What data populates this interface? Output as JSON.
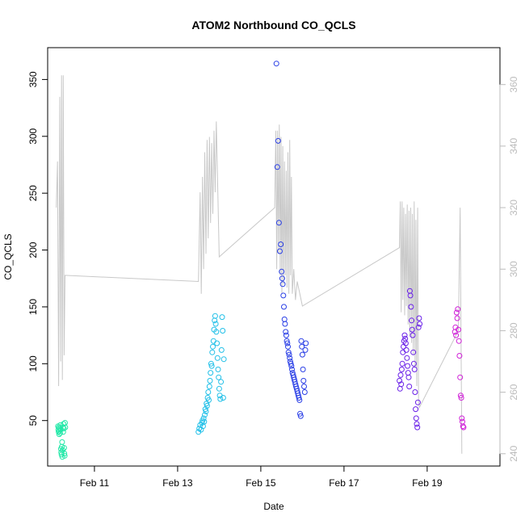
{
  "chart_data": {
    "type": "scatter",
    "title": "ATOM2 Northbound CO_QCLS",
    "xlabel": "Date",
    "ylabel": "CO_QCLS",
    "xlim": [
      "2016-02-09T21:00",
      "2016-02-20T18:00"
    ],
    "ylim": [
      10,
      378
    ],
    "y2lim": [
      236,
      372
    ],
    "x_ticks": [
      {
        "date": "2016-02-11",
        "label": "Feb 11"
      },
      {
        "date": "2016-02-13",
        "label": "Feb 13"
      },
      {
        "date": "2016-02-15",
        "label": "Feb 15"
      },
      {
        "date": "2016-02-17",
        "label": "Feb 17"
      },
      {
        "date": "2016-02-19",
        "label": "Feb 19"
      }
    ],
    "y_ticks": [
      50,
      100,
      150,
      200,
      250,
      300,
      350
    ],
    "y2_ticks": [
      240,
      260,
      280,
      300,
      320,
      340,
      360
    ],
    "grid": false,
    "legend": "none",
    "colors": {
      "line": "#c8c8c8",
      "axis": "#000000",
      "right_axis": "#bbbbbb"
    },
    "series": [
      {
        "color": "#22e8a8",
        "points": [
          [
            "2016-02-10T03:00",
            45
          ],
          [
            "2016-02-10T03:10",
            42
          ],
          [
            "2016-02-10T03:20",
            40
          ],
          [
            "2016-02-10T03:30",
            44
          ],
          [
            "2016-02-10T03:40",
            38
          ],
          [
            "2016-02-10T03:50",
            41
          ],
          [
            "2016-02-10T04:00",
            43
          ],
          [
            "2016-02-10T04:10",
            39
          ],
          [
            "2016-02-10T04:20",
            46
          ],
          [
            "2016-02-10T04:30",
            42
          ],
          [
            "2016-02-10T04:40",
            25
          ],
          [
            "2016-02-10T04:50",
            22
          ],
          [
            "2016-02-10T05:00",
            20
          ],
          [
            "2016-02-10T05:10",
            27
          ],
          [
            "2016-02-10T05:20",
            31
          ],
          [
            "2016-02-10T05:30",
            18
          ],
          [
            "2016-02-10T05:40",
            24
          ],
          [
            "2016-02-10T05:50",
            44
          ],
          [
            "2016-02-10T06:00",
            40
          ],
          [
            "2016-02-10T06:10",
            47
          ],
          [
            "2016-02-10T06:20",
            43
          ],
          [
            "2016-02-10T06:30",
            26
          ],
          [
            "2016-02-10T06:40",
            21
          ],
          [
            "2016-02-10T06:50",
            19
          ],
          [
            "2016-02-10T07:00",
            48
          ],
          [
            "2016-02-10T07:10",
            44
          ]
        ]
      },
      {
        "color": "#22c0e8",
        "points": [
          [
            "2016-02-13T12:00",
            40
          ],
          [
            "2016-02-13T12:30",
            43
          ],
          [
            "2016-02-13T13:00",
            46
          ],
          [
            "2016-02-13T13:30",
            42
          ],
          [
            "2016-02-13T14:00",
            48
          ],
          [
            "2016-02-13T14:20",
            50
          ],
          [
            "2016-02-13T14:40",
            45
          ],
          [
            "2016-02-13T15:00",
            52
          ],
          [
            "2016-02-13T15:20",
            49
          ],
          [
            "2016-02-13T15:40",
            55
          ],
          [
            "2016-02-13T16:00",
            60
          ],
          [
            "2016-02-13T16:20",
            58
          ],
          [
            "2016-02-13T16:40",
            65
          ],
          [
            "2016-02-13T17:00",
            63
          ],
          [
            "2016-02-13T17:20",
            70
          ],
          [
            "2016-02-13T17:40",
            75
          ],
          [
            "2016-02-13T18:00",
            68
          ],
          [
            "2016-02-13T18:20",
            80
          ],
          [
            "2016-02-13T18:40",
            85
          ],
          [
            "2016-02-13T19:00",
            92
          ],
          [
            "2016-02-13T19:20",
            100
          ],
          [
            "2016-02-13T19:40",
            98
          ],
          [
            "2016-02-13T20:00",
            110
          ],
          [
            "2016-02-13T20:20",
            115
          ],
          [
            "2016-02-13T20:40",
            120
          ],
          [
            "2016-02-13T21:00",
            130
          ],
          [
            "2016-02-13T21:20",
            138
          ],
          [
            "2016-02-13T21:40",
            142
          ],
          [
            "2016-02-13T22:00",
            135
          ],
          [
            "2016-02-13T22:20",
            128
          ],
          [
            "2016-02-13T22:40",
            118
          ],
          [
            "2016-02-13T23:00",
            105
          ],
          [
            "2016-02-13T23:20",
            95
          ],
          [
            "2016-02-13T23:40",
            88
          ],
          [
            "2016-02-14T00:00",
            78
          ],
          [
            "2016-02-14T00:20",
            72
          ],
          [
            "2016-02-14T00:40",
            69
          ],
          [
            "2016-02-14T01:00",
            84
          ],
          [
            "2016-02-14T01:20",
            112
          ],
          [
            "2016-02-14T01:40",
            141
          ],
          [
            "2016-02-14T02:00",
            129
          ],
          [
            "2016-02-14T02:20",
            70
          ],
          [
            "2016-02-14T02:40",
            104
          ]
        ]
      },
      {
        "color": "#2a3fe6",
        "points": [
          [
            "2016-02-15T09:00",
            364
          ],
          [
            "2016-02-15T09:30",
            273
          ],
          [
            "2016-02-15T10:00",
            296
          ],
          [
            "2016-02-15T10:30",
            224
          ],
          [
            "2016-02-15T11:00",
            199
          ],
          [
            "2016-02-15T11:30",
            205
          ],
          [
            "2016-02-15T12:00",
            181
          ],
          [
            "2016-02-15T12:20",
            175
          ],
          [
            "2016-02-15T12:40",
            170
          ],
          [
            "2016-02-15T13:00",
            160
          ],
          [
            "2016-02-15T13:20",
            150
          ],
          [
            "2016-02-15T13:40",
            139
          ],
          [
            "2016-02-15T14:00",
            135
          ],
          [
            "2016-02-15T14:20",
            128
          ],
          [
            "2016-02-15T14:40",
            125
          ],
          [
            "2016-02-15T15:00",
            120
          ],
          [
            "2016-02-15T15:20",
            118
          ],
          [
            "2016-02-15T15:40",
            115
          ],
          [
            "2016-02-15T16:00",
            110
          ],
          [
            "2016-02-15T16:20",
            108
          ],
          [
            "2016-02-15T16:40",
            105
          ],
          [
            "2016-02-15T17:00",
            102
          ],
          [
            "2016-02-15T17:20",
            100
          ],
          [
            "2016-02-15T17:40",
            98
          ],
          [
            "2016-02-15T18:00",
            95
          ],
          [
            "2016-02-15T18:20",
            92
          ],
          [
            "2016-02-15T18:40",
            90
          ],
          [
            "2016-02-15T19:00",
            88
          ],
          [
            "2016-02-15T19:20",
            86
          ],
          [
            "2016-02-15T19:40",
            84
          ],
          [
            "2016-02-15T20:00",
            82
          ],
          [
            "2016-02-15T20:20",
            80
          ],
          [
            "2016-02-15T20:40",
            78
          ],
          [
            "2016-02-15T21:00",
            76
          ],
          [
            "2016-02-15T21:20",
            74
          ],
          [
            "2016-02-15T21:40",
            72
          ],
          [
            "2016-02-15T22:00",
            70
          ],
          [
            "2016-02-15T22:20",
            68
          ],
          [
            "2016-02-15T22:40",
            56
          ],
          [
            "2016-02-15T23:00",
            54
          ],
          [
            "2016-02-15T23:20",
            120
          ],
          [
            "2016-02-15T23:40",
            115
          ],
          [
            "2016-02-16T00:00",
            108
          ],
          [
            "2016-02-16T00:20",
            95
          ],
          [
            "2016-02-16T00:40",
            85
          ],
          [
            "2016-02-16T01:00",
            80
          ],
          [
            "2016-02-16T01:20",
            75
          ],
          [
            "2016-02-16T01:40",
            112
          ],
          [
            "2016-02-16T02:00",
            118
          ]
        ]
      },
      {
        "color": "#6a20e8",
        "points": [
          [
            "2016-02-18T08:00",
            85
          ],
          [
            "2016-02-18T08:20",
            78
          ],
          [
            "2016-02-18T08:40",
            90
          ],
          [
            "2016-02-18T09:00",
            82
          ],
          [
            "2016-02-18T09:20",
            95
          ],
          [
            "2016-02-18T09:40",
            100
          ],
          [
            "2016-02-18T10:00",
            110
          ],
          [
            "2016-02-18T10:20",
            115
          ],
          [
            "2016-02-18T10:40",
            120
          ],
          [
            "2016-02-18T11:00",
            125
          ],
          [
            "2016-02-18T11:20",
            122
          ],
          [
            "2016-02-18T11:40",
            118
          ],
          [
            "2016-02-18T12:00",
            112
          ],
          [
            "2016-02-18T12:20",
            105
          ],
          [
            "2016-02-18T12:40",
            98
          ],
          [
            "2016-02-18T13:00",
            92
          ],
          [
            "2016-02-18T13:20",
            88
          ],
          [
            "2016-02-18T13:40",
            80
          ],
          [
            "2016-02-18T14:00",
            164
          ],
          [
            "2016-02-18T14:20",
            160
          ],
          [
            "2016-02-18T14:40",
            150
          ],
          [
            "2016-02-18T15:00",
            138
          ],
          [
            "2016-02-18T15:20",
            130
          ],
          [
            "2016-02-18T15:40",
            125
          ],
          [
            "2016-02-18T16:00",
            110
          ],
          [
            "2016-02-18T16:20",
            100
          ],
          [
            "2016-02-18T16:40",
            95
          ],
          [
            "2016-02-18T17:00",
            75
          ],
          [
            "2016-02-18T17:20",
            60
          ],
          [
            "2016-02-18T17:40",
            52
          ],
          [
            "2016-02-18T18:00",
            47
          ],
          [
            "2016-02-18T18:20",
            44
          ],
          [
            "2016-02-18T18:40",
            66
          ],
          [
            "2016-02-18T19:00",
            132
          ],
          [
            "2016-02-18T19:20",
            140
          ],
          [
            "2016-02-18T19:40",
            135
          ]
        ]
      },
      {
        "color": "#d020d8",
        "points": [
          [
            "2016-02-19T16:00",
            128
          ],
          [
            "2016-02-19T16:20",
            132
          ],
          [
            "2016-02-19T16:40",
            125
          ],
          [
            "2016-02-19T17:00",
            145
          ],
          [
            "2016-02-19T17:20",
            140
          ],
          [
            "2016-02-19T17:40",
            148
          ],
          [
            "2016-02-19T18:00",
            130
          ],
          [
            "2016-02-19T18:20",
            120
          ],
          [
            "2016-02-19T18:40",
            107
          ],
          [
            "2016-02-19T19:00",
            88
          ],
          [
            "2016-02-19T19:20",
            72
          ],
          [
            "2016-02-19T19:40",
            70
          ],
          [
            "2016-02-19T20:00",
            52
          ],
          [
            "2016-02-19T20:20",
            49
          ],
          [
            "2016-02-19T20:40",
            45
          ],
          [
            "2016-02-19T21:00",
            44
          ]
        ]
      }
    ],
    "line_series": {
      "axis": "right",
      "points": [
        [
          "2016-02-10T02:00",
          320
        ],
        [
          "2016-02-10T02:40",
          335
        ],
        [
          "2016-02-10T03:20",
          262
        ],
        [
          "2016-02-10T04:00",
          356
        ],
        [
          "2016-02-10T04:30",
          270
        ],
        [
          "2016-02-10T05:00",
          363
        ],
        [
          "2016-02-10T05:30",
          264
        ],
        [
          "2016-02-10T06:00",
          363
        ],
        [
          "2016-02-10T06:30",
          272
        ],
        [
          "2016-02-10T07:00",
          298
        ],
        [
          "2016-02-13T12:00",
          296
        ],
        [
          "2016-02-13T13:00",
          325
        ],
        [
          "2016-02-13T13:40",
          292
        ],
        [
          "2016-02-13T14:20",
          330
        ],
        [
          "2016-02-13T15:00",
          300
        ],
        [
          "2016-02-13T15:40",
          338
        ],
        [
          "2016-02-13T16:20",
          305
        ],
        [
          "2016-02-13T17:00",
          342
        ],
        [
          "2016-02-13T17:40",
          310
        ],
        [
          "2016-02-13T18:20",
          343
        ],
        [
          "2016-02-13T19:00",
          315
        ],
        [
          "2016-02-13T19:40",
          341
        ],
        [
          "2016-02-13T20:20",
          318
        ],
        [
          "2016-02-13T21:00",
          345
        ],
        [
          "2016-02-13T21:40",
          325
        ],
        [
          "2016-02-13T22:20",
          348
        ],
        [
          "2016-02-13T23:00",
          330
        ],
        [
          "2016-02-14T00:00",
          304
        ],
        [
          "2016-02-15T08:00",
          320
        ],
        [
          "2016-02-15T08:40",
          345
        ],
        [
          "2016-02-15T09:10",
          300
        ],
        [
          "2016-02-15T09:40",
          345
        ],
        [
          "2016-02-15T10:10",
          305
        ],
        [
          "2016-02-15T10:40",
          347
        ],
        [
          "2016-02-15T11:10",
          298
        ],
        [
          "2016-02-15T11:40",
          343
        ],
        [
          "2016-02-15T12:10",
          292
        ],
        [
          "2016-02-15T12:40",
          340
        ],
        [
          "2016-02-15T13:10",
          295
        ],
        [
          "2016-02-15T13:40",
          335
        ],
        [
          "2016-02-15T14:10",
          298
        ],
        [
          "2016-02-15T14:40",
          332
        ],
        [
          "2016-02-15T15:10",
          294
        ],
        [
          "2016-02-15T15:40",
          338
        ],
        [
          "2016-02-15T16:10",
          292
        ],
        [
          "2016-02-15T16:40",
          342
        ],
        [
          "2016-02-15T17:10",
          298
        ],
        [
          "2016-02-15T17:40",
          330
        ],
        [
          "2016-02-15T18:10",
          292
        ],
        [
          "2016-02-15T19:00",
          300
        ],
        [
          "2016-02-15T20:00",
          290
        ],
        [
          "2016-02-15T21:00",
          296
        ],
        [
          "2016-02-16T00:00",
          288
        ],
        [
          "2016-02-18T08:00",
          307
        ],
        [
          "2016-02-18T08:30",
          322
        ],
        [
          "2016-02-18T09:00",
          286
        ],
        [
          "2016-02-18T09:30",
          322
        ],
        [
          "2016-02-18T10:00",
          290
        ],
        [
          "2016-02-18T10:30",
          320
        ],
        [
          "2016-02-18T11:00",
          285
        ],
        [
          "2016-02-18T11:30",
          318
        ],
        [
          "2016-02-18T12:00",
          288
        ],
        [
          "2016-02-18T12:30",
          321
        ],
        [
          "2016-02-18T13:00",
          282
        ],
        [
          "2016-02-18T13:30",
          319
        ],
        [
          "2016-02-18T14:00",
          278
        ],
        [
          "2016-02-18T14:30",
          320
        ],
        [
          "2016-02-18T15:00",
          276
        ],
        [
          "2016-02-18T15:30",
          318
        ],
        [
          "2016-02-18T16:00",
          272
        ],
        [
          "2016-02-18T16:30",
          322
        ],
        [
          "2016-02-18T17:00",
          268
        ],
        [
          "2016-02-18T17:30",
          316
        ],
        [
          "2016-02-18T18:00",
          262
        ],
        [
          "2016-02-18T18:30",
          320
        ],
        [
          "2016-02-18T19:00",
          258
        ],
        [
          "2016-02-18T19:30",
          255
        ],
        [
          "2016-02-19T18:00",
          280
        ],
        [
          "2016-02-19T19:00",
          320
        ],
        [
          "2016-02-19T20:00",
          240
        ]
      ]
    }
  }
}
